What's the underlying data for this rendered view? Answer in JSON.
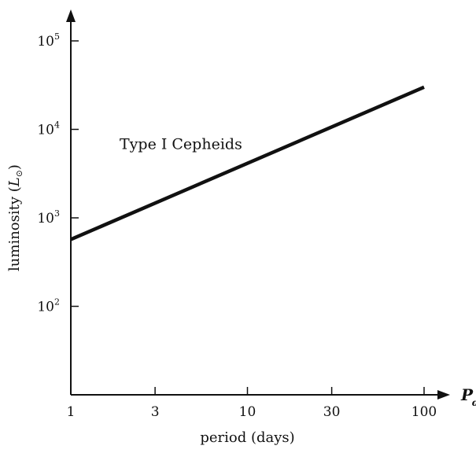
{
  "chart_data": {
    "type": "line",
    "xlabel": "period (days)",
    "ylabel": "luminosity (L⊙)",
    "ylabel_parts": {
      "prefix": "luminosity (",
      "symbol": "L",
      "subscript": "⊙",
      "suffix": ")"
    },
    "x_axis_symbol": "P",
    "x_axis_symbol_subscript": "d",
    "x_scale": "log",
    "y_scale": "log",
    "xlim": [
      1,
      100
    ],
    "ylim": [
      10,
      100000
    ],
    "x_ticks": [
      {
        "value": 1,
        "label": "1"
      },
      {
        "value": 3,
        "label": "3"
      },
      {
        "value": 10,
        "label": "10"
      },
      {
        "value": 30,
        "label": "30"
      },
      {
        "value": 100,
        "label": "100"
      }
    ],
    "y_ticks": [
      {
        "value": 100,
        "base": "10",
        "exp": "2"
      },
      {
        "value": 1000,
        "base": "10",
        "exp": "3"
      },
      {
        "value": 10000,
        "base": "10",
        "exp": "4"
      },
      {
        "value": 100000,
        "base": "10",
        "exp": "5"
      }
    ],
    "series": [
      {
        "name": "Type I Cepheids",
        "x": [
          1,
          100
        ],
        "y": [
          570,
          30000
        ]
      }
    ],
    "annotations": [
      {
        "text": "Type I Cepheids",
        "x": 4.2,
        "y": 6000
      }
    ],
    "grid": false,
    "colors": {
      "axis": "#111111",
      "line": "#111111"
    }
  }
}
